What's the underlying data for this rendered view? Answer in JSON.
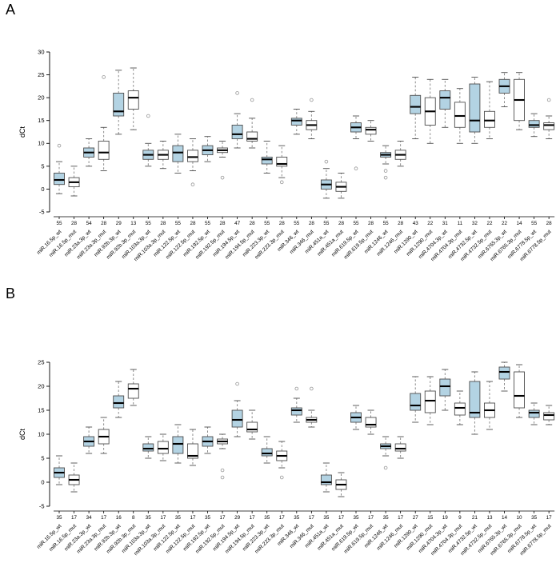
{
  "colors": {
    "wt_fill": "#b3d3e3",
    "mut_fill": "#ffffff",
    "box_border": "#4d4d4d",
    "median": "#000000",
    "whisker": "#808080",
    "outlier": "#979797",
    "axis": "#000000"
  },
  "chart_data": [
    {
      "type": "boxplot",
      "panel_label": "A",
      "ylabel": "dCt",
      "ylim": [
        -5,
        30
      ],
      "yticks": [
        -5,
        0,
        5,
        10,
        15,
        20,
        25,
        30
      ],
      "grid": false,
      "legend": "none",
      "boxes": [
        {
          "label": "miR.16.5p_wt",
          "group": "wt",
          "n": 55,
          "stats": [
            -1,
            1,
            2,
            3.5,
            6
          ],
          "outliers": [
            9.5
          ]
        },
        {
          "label": "miR.16.5p_mut",
          "group": "mut",
          "n": 28,
          "stats": [
            -1.5,
            0.5,
            1.5,
            2.5,
            5
          ],
          "outliers": []
        },
        {
          "label": "miR.23a.3p_wt",
          "group": "wt",
          "n": 54,
          "stats": [
            5,
            7,
            8,
            9,
            11
          ],
          "outliers": []
        },
        {
          "label": "miR.23a.3p_mut",
          "group": "mut",
          "n": 28,
          "stats": [
            4,
            6.5,
            8,
            10.5,
            13.5
          ],
          "outliers": [
            24.5
          ]
        },
        {
          "label": "miR.92b.3p_wt",
          "group": "wt",
          "n": 29,
          "stats": [
            12,
            16,
            17,
            21,
            26
          ],
          "outliers": []
        },
        {
          "label": "miR.92b.3p_mut",
          "group": "mut",
          "n": 13,
          "stats": [
            13,
            17.5,
            20,
            21.5,
            26.5
          ],
          "outliers": []
        },
        {
          "label": "miR.103a.3p_wt",
          "group": "wt",
          "n": 55,
          "stats": [
            5,
            6.5,
            7.5,
            8.5,
            10
          ],
          "outliers": [
            16
          ]
        },
        {
          "label": "miR.103a.3p_mut",
          "group": "mut",
          "n": 28,
          "stats": [
            4.5,
            6.5,
            7.5,
            8.5,
            10.5
          ],
          "outliers": []
        },
        {
          "label": "miR.122.5p_wt",
          "group": "wt",
          "n": 55,
          "stats": [
            3.5,
            6,
            8,
            9.5,
            12
          ],
          "outliers": []
        },
        {
          "label": "miR.122.5p_mut",
          "group": "mut",
          "n": 28,
          "stats": [
            4,
            6,
            7,
            8.5,
            11
          ],
          "outliers": [
            1
          ]
        },
        {
          "label": "miR.192.5p_wt",
          "group": "wt",
          "n": 55,
          "stats": [
            6,
            7.5,
            8.5,
            9.5,
            11.5
          ],
          "outliers": []
        },
        {
          "label": "miR.192.5p_mut",
          "group": "mut",
          "n": 28,
          "stats": [
            7,
            8,
            8.5,
            9,
            10.5
          ],
          "outliers": [
            2.5
          ]
        },
        {
          "label": "miR.194.5p_wt",
          "group": "wt",
          "n": 47,
          "stats": [
            9,
            11,
            12,
            14,
            16.5
          ],
          "outliers": [
            21
          ]
        },
        {
          "label": "miR.194.5p_mut",
          "group": "mut",
          "n": 28,
          "stats": [
            9,
            10.5,
            11,
            12.5,
            15.5
          ],
          "outliers": [
            19.5
          ]
        },
        {
          "label": "miR.223.3p_wt",
          "group": "wt",
          "n": 55,
          "stats": [
            3.5,
            5.5,
            6.5,
            7,
            10.5
          ],
          "outliers": []
        },
        {
          "label": "miR.223.3p_mut",
          "group": "mut",
          "n": 28,
          "stats": [
            2.5,
            5,
            5.5,
            7,
            9.5
          ],
          "outliers": [
            1.5
          ]
        },
        {
          "label": "miR.346_wt",
          "group": "wt",
          "n": 55,
          "stats": [
            12,
            14,
            15,
            15.5,
            17.5
          ],
          "outliers": []
        },
        {
          "label": "miR.346_mut",
          "group": "mut",
          "n": 28,
          "stats": [
            11,
            13,
            14,
            15,
            17
          ],
          "outliers": [
            19.5
          ]
        },
        {
          "label": "miR.451a_wt",
          "group": "wt",
          "n": 55,
          "stats": [
            -2,
            0,
            1,
            2,
            4.5
          ],
          "outliers": [
            6
          ]
        },
        {
          "label": "miR.451a_mut",
          "group": "mut",
          "n": 28,
          "stats": [
            -2,
            -0.5,
            0.5,
            1.5,
            3.5
          ],
          "outliers": []
        },
        {
          "label": "miR.619.5p_wt",
          "group": "wt",
          "n": 55,
          "stats": [
            11,
            12.5,
            13.5,
            14.5,
            16
          ],
          "outliers": [
            4.5
          ]
        },
        {
          "label": "miR.619.5p_mut",
          "group": "mut",
          "n": 28,
          "stats": [
            10.5,
            12,
            13,
            13.5,
            15
          ],
          "outliers": []
        },
        {
          "label": "miR.1246_wt",
          "group": "wt",
          "n": 55,
          "stats": [
            5.5,
            7,
            7.5,
            8,
            9.5
          ],
          "outliers": [
            4,
            2.5
          ]
        },
        {
          "label": "miR.1246_mut",
          "group": "mut",
          "n": 28,
          "stats": [
            5,
            6.5,
            7.5,
            8.5,
            10.5
          ],
          "outliers": []
        },
        {
          "label": "miR.1290_wt",
          "group": "wt",
          "n": 43,
          "stats": [
            11,
            16.5,
            18,
            20.5,
            24.5
          ],
          "outliers": []
        },
        {
          "label": "miR.1290_mut",
          "group": "mut",
          "n": 22,
          "stats": [
            10,
            14,
            17,
            20,
            24
          ],
          "outliers": []
        },
        {
          "label": "miR.4704.3p_wt",
          "group": "wt",
          "n": 31,
          "stats": [
            13.5,
            17.5,
            20,
            21.5,
            24
          ],
          "outliers": []
        },
        {
          "label": "miR.4704.3p_mut",
          "group": "mut",
          "n": 11,
          "stats": [
            10,
            13.5,
            16,
            19,
            22
          ],
          "outliers": []
        },
        {
          "label": "miR.4732.5p_wt",
          "group": "wt",
          "n": 32,
          "stats": [
            10,
            12.5,
            15,
            23,
            24.5
          ],
          "outliers": []
        },
        {
          "label": "miR.4732.5p_mut",
          "group": "mut",
          "n": 22,
          "stats": [
            11,
            13.5,
            15,
            17,
            23.5
          ],
          "outliers": []
        },
        {
          "label": "miR.6765.3p_wt",
          "group": "wt",
          "n": 22,
          "stats": [
            18,
            21,
            22.5,
            24,
            25.5
          ],
          "outliers": []
        },
        {
          "label": "miR.6765.3p_mut",
          "group": "mut",
          "n": 14,
          "stats": [
            13,
            15,
            19.5,
            24,
            25.5
          ],
          "outliers": []
        },
        {
          "label": "miR.6778.5p_wt",
          "group": "wt",
          "n": 55,
          "stats": [
            11.5,
            13.5,
            14,
            15,
            16.5
          ],
          "outliers": []
        },
        {
          "label": "miR.6778.5p_mut",
          "group": "mut",
          "n": 28,
          "stats": [
            11,
            13,
            14,
            14.5,
            16
          ],
          "outliers": [
            19.5
          ]
        }
      ]
    },
    {
      "type": "boxplot",
      "panel_label": "B",
      "ylabel": "dCt",
      "ylim": [
        -5,
        25
      ],
      "yticks": [
        -5,
        0,
        5,
        10,
        15,
        20,
        25
      ],
      "grid": false,
      "legend": "none",
      "boxes": [
        {
          "label": "miR.16.5p_wt",
          "group": "wt",
          "n": 35,
          "stats": [
            -0.5,
            1,
            2,
            3,
            5.5
          ],
          "outliers": []
        },
        {
          "label": "miR.16.5p_mut",
          "group": "mut",
          "n": 17,
          "stats": [
            -2,
            -0.5,
            0.5,
            1.5,
            4
          ],
          "outliers": []
        },
        {
          "label": "miR.23a.3p_wt",
          "group": "wt",
          "n": 34,
          "stats": [
            6,
            7.5,
            8.5,
            9.5,
            11.5
          ],
          "outliers": []
        },
        {
          "label": "miR.23a.3p_mut",
          "group": "mut",
          "n": 17,
          "stats": [
            6,
            8,
            9.5,
            11,
            13.5
          ],
          "outliers": []
        },
        {
          "label": "miR.92b.3p_wt",
          "group": "wt",
          "n": 16,
          "stats": [
            13.5,
            15.5,
            16.5,
            18,
            21
          ],
          "outliers": []
        },
        {
          "label": "miR.92b.3p_mut",
          "group": "mut",
          "n": 8,
          "stats": [
            16,
            17.5,
            19.5,
            20.5,
            23.5
          ],
          "outliers": []
        },
        {
          "label": "miR.103a.3p_wt",
          "group": "wt",
          "n": 35,
          "stats": [
            5,
            6.5,
            7,
            8,
            9.5
          ],
          "outliers": []
        },
        {
          "label": "miR.103a.3p_mut",
          "group": "mut",
          "n": 17,
          "stats": [
            4.5,
            6,
            7,
            8.5,
            10
          ],
          "outliers": []
        },
        {
          "label": "miR.122.5p_wt",
          "group": "wt",
          "n": 35,
          "stats": [
            4,
            6,
            8,
            9.5,
            12
          ],
          "outliers": []
        },
        {
          "label": "miR.122.5p_mut",
          "group": "mut",
          "n": 17,
          "stats": [
            3.5,
            5,
            5.5,
            8,
            11
          ],
          "outliers": []
        },
        {
          "label": "miR.192.5p_wt",
          "group": "wt",
          "n": 35,
          "stats": [
            6,
            7.5,
            8.5,
            9.5,
            11.5
          ],
          "outliers": []
        },
        {
          "label": "miR.192.5p_mut",
          "group": "mut",
          "n": 17,
          "stats": [
            7,
            8,
            8.5,
            9,
            10
          ],
          "outliers": [
            2.5,
            1
          ]
        },
        {
          "label": "miR.194.5p_wt",
          "group": "wt",
          "n": 29,
          "stats": [
            9.5,
            11.5,
            13,
            15,
            17
          ],
          "outliers": [
            20.5
          ]
        },
        {
          "label": "miR.194.5p_mut",
          "group": "mut",
          "n": 17,
          "stats": [
            9,
            10.5,
            11,
            12.5,
            15
          ],
          "outliers": []
        },
        {
          "label": "miR.223.3p_wt",
          "group": "wt",
          "n": 35,
          "stats": [
            4,
            5.5,
            6,
            7,
            9.5
          ],
          "outliers": []
        },
        {
          "label": "miR.223.3p_mut",
          "group": "mut",
          "n": 17,
          "stats": [
            3,
            4.5,
            5.5,
            6.5,
            8.5
          ],
          "outliers": [
            1
          ]
        },
        {
          "label": "miR.346_wt",
          "group": "wt",
          "n": 35,
          "stats": [
            12.5,
            14,
            15,
            15.5,
            17.5
          ],
          "outliers": [
            19.5
          ]
        },
        {
          "label": "miR.346_mut",
          "group": "mut",
          "n": 17,
          "stats": [
            11.5,
            12.5,
            13,
            13.5,
            15
          ],
          "outliers": [
            19.5
          ]
        },
        {
          "label": "miR.451a_wt",
          "group": "wt",
          "n": 35,
          "stats": [
            -2,
            -0.5,
            0,
            1.5,
            4
          ],
          "outliers": []
        },
        {
          "label": "miR.451a_mut",
          "group": "mut",
          "n": 17,
          "stats": [
            -3,
            -1.5,
            -0.5,
            0.5,
            2
          ],
          "outliers": []
        },
        {
          "label": "miR.619.5p_wt",
          "group": "wt",
          "n": 35,
          "stats": [
            11,
            12.5,
            13.5,
            14.5,
            16
          ],
          "outliers": []
        },
        {
          "label": "miR.619.5p_mut",
          "group": "mut",
          "n": 17,
          "stats": [
            10,
            11.5,
            12,
            13.5,
            15
          ],
          "outliers": []
        },
        {
          "label": "miR.1246_wt",
          "group": "wt",
          "n": 35,
          "stats": [
            5.5,
            7,
            7.5,
            8,
            9.5
          ],
          "outliers": [
            3
          ]
        },
        {
          "label": "miR.1246_mut",
          "group": "mut",
          "n": 17,
          "stats": [
            5,
            6.5,
            7,
            8,
            9.5
          ],
          "outliers": []
        },
        {
          "label": "miR.1290_wt",
          "group": "wt",
          "n": 27,
          "stats": [
            12.5,
            15,
            16,
            18.5,
            22
          ],
          "outliers": []
        },
        {
          "label": "miR.1290_mut",
          "group": "mut",
          "n": 15,
          "stats": [
            12,
            14.5,
            17,
            19,
            22
          ],
          "outliers": []
        },
        {
          "label": "miR.4704.3p_wt",
          "group": "wt",
          "n": 19,
          "stats": [
            15,
            18,
            20,
            21.5,
            23.5
          ],
          "outliers": []
        },
        {
          "label": "miR.4704.3p_mut",
          "group": "mut",
          "n": 9,
          "stats": [
            12,
            14,
            15.5,
            16.5,
            19
          ],
          "outliers": []
        },
        {
          "label": "miR.4732.5p_wt",
          "group": "wt",
          "n": 21,
          "stats": [
            10,
            13.5,
            14.5,
            21,
            23
          ],
          "outliers": []
        },
        {
          "label": "miR.4732.5p_mut",
          "group": "mut",
          "n": 13,
          "stats": [
            11,
            13.5,
            15,
            16.5,
            21
          ],
          "outliers": []
        },
        {
          "label": "miR.6765.3p_wt",
          "group": "wt",
          "n": 14,
          "stats": [
            19,
            21.5,
            23,
            24,
            25
          ],
          "outliers": []
        },
        {
          "label": "miR.6765.3p_mut",
          "group": "mut",
          "n": 10,
          "stats": [
            13.5,
            15.5,
            18,
            23,
            24.5
          ],
          "outliers": []
        },
        {
          "label": "miR.6778.5p_wt",
          "group": "wt",
          "n": 35,
          "stats": [
            12,
            13.5,
            14.5,
            15,
            16.5
          ],
          "outliers": []
        },
        {
          "label": "miR.6778.5p_mut",
          "group": "mut",
          "n": 17,
          "stats": [
            12,
            13,
            14,
            14.5,
            16
          ],
          "outliers": []
        }
      ]
    }
  ]
}
